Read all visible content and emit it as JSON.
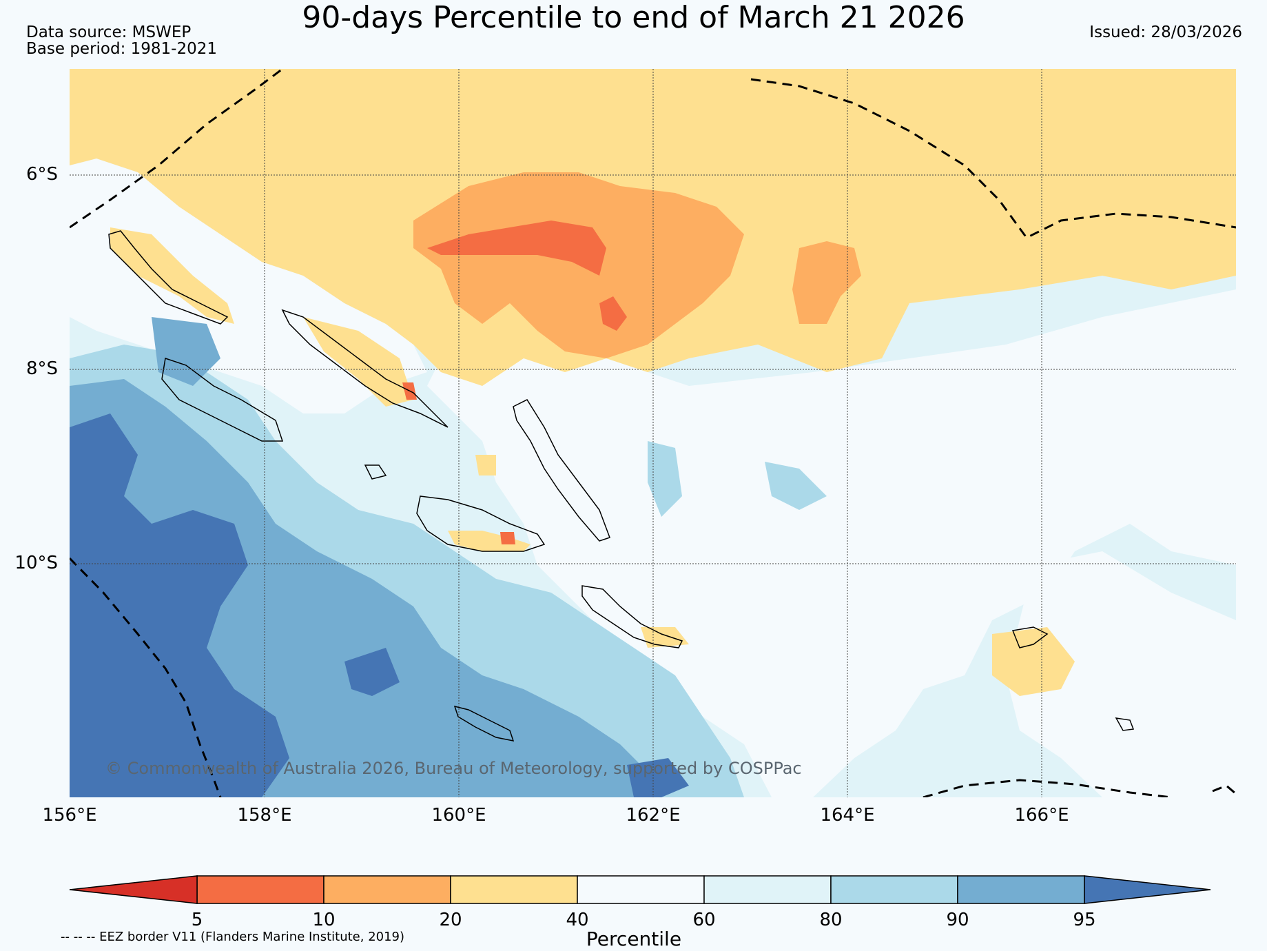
{
  "title": "90-days Percentile to end of March 21 2026",
  "data_source": "Data source: MSWEP",
  "base_period": "Base period: 1981-2021",
  "issued": "Issued: 28/03/2026",
  "lat_labels": [
    "6°S",
    "8°S",
    "10°S"
  ],
  "lon_labels": [
    "156°E",
    "158°E",
    "160°E",
    "162°E",
    "164°E",
    "166°E"
  ],
  "copyright": "© Commonwealth of Australia 2026, Bureau of Meteorology, supported by COSPPac",
  "colorbar": {
    "ticks": [
      "5",
      "10",
      "20",
      "40",
      "60",
      "80",
      "90",
      "95"
    ],
    "colors": [
      "#d73027",
      "#f46d43",
      "#fdae61",
      "#fee090",
      "#f5fafd",
      "#e0f3f8",
      "#abd9e9",
      "#74add1",
      "#4575b4"
    ],
    "label": "Percentile"
  },
  "eez_note": "-- -- -- EEZ border V11 (Flanders Marine Institute, 2019)",
  "colors": {
    "background": "#f5fafd",
    "coastline": "#000000",
    "grid": "#444444"
  }
}
